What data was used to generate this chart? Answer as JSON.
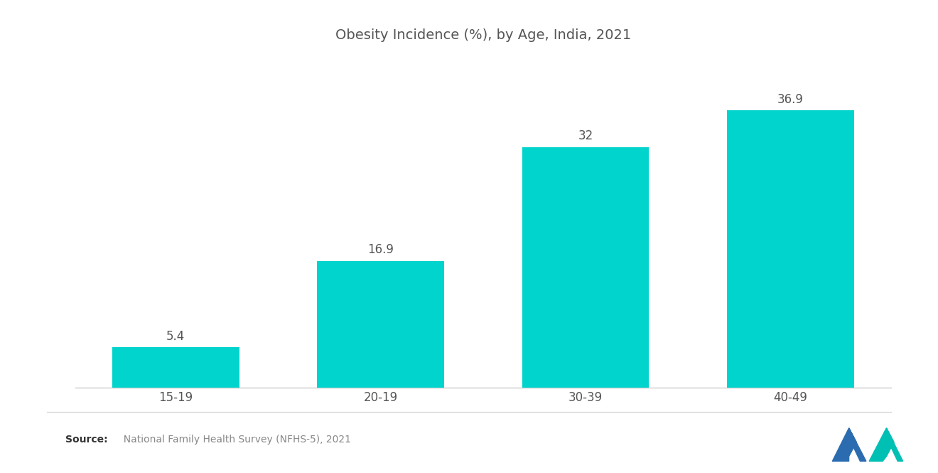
{
  "title": "Obesity Incidence (%), by Age, India, 2021",
  "categories": [
    "15-19",
    "20-19",
    "30-39",
    "40-49"
  ],
  "values": [
    5.4,
    16.9,
    32,
    36.9
  ],
  "bar_color": "#00D4CC",
  "background_color": "#ffffff",
  "title_fontsize": 14,
  "label_fontsize": 12,
  "value_fontsize": 12,
  "source_bold": "Source:",
  "source_text": "  National Family Health Survey (NFHS-5), 2021",
  "ylim": [
    0,
    44
  ],
  "bar_width": 0.62,
  "logo_left_color": "#2B6CB0",
  "logo_right_color": "#00BFB3"
}
